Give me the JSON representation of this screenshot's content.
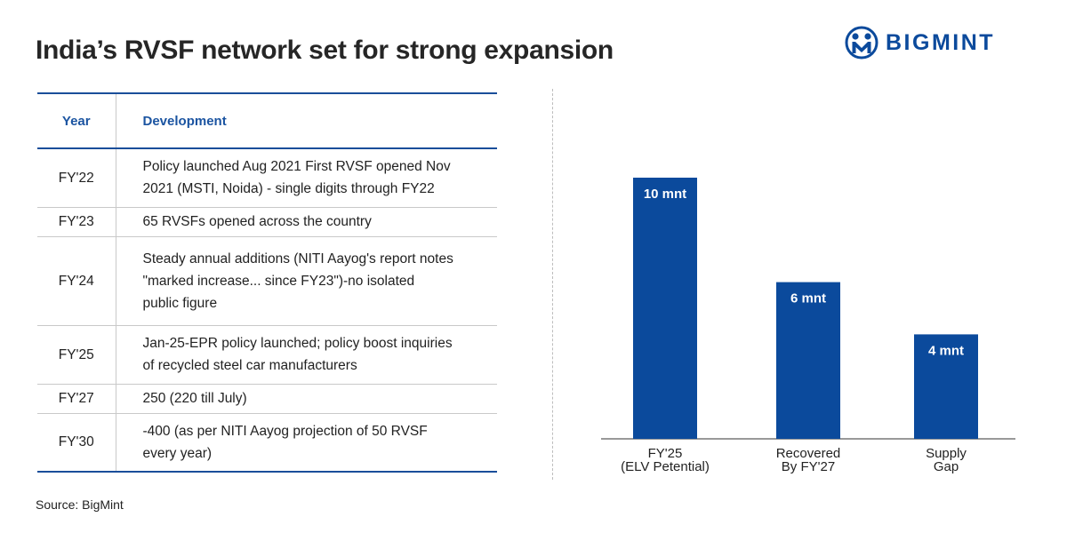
{
  "title": "India’s RVSF network set for strong expansion",
  "logo": {
    "text": "BIGMINT",
    "icon": "bigmint-logo-icon",
    "color": "#0b4a9c"
  },
  "table": {
    "headers": {
      "year": "Year",
      "development": "Development"
    },
    "rows": [
      {
        "year": "FY'22",
        "lines": [
          "Policy launched Aug 2021 First RVSF opened Nov",
          "2021 (MSTI, Noida) - single digits through FY22"
        ]
      },
      {
        "year": "FY'23",
        "lines": [
          "65 RVSFs opened across the country"
        ]
      },
      {
        "year": "FY'24",
        "lines": [
          "Steady annual additions (NITI Aayog's report notes",
          "\"marked increase... since FY23\")-no isolated",
          "public figure"
        ]
      },
      {
        "year": "FY'25",
        "lines": [
          "Jan-25-EPR policy launched; policy boost inquiries",
          "of recycled steel car manufacturers"
        ]
      },
      {
        "year": "FY'27",
        "lines": [
          "250 (220 till July)"
        ]
      },
      {
        "year": "FY'30",
        "lines": [
          "-400 (as per NITI Aayog projection of 50 RVSF",
          "every year)"
        ]
      }
    ]
  },
  "chart_data": {
    "type": "bar",
    "categories": [
      [
        "FY'25",
        "(ELV Petential)"
      ],
      [
        "Recovered",
        "By FY'27"
      ],
      [
        "Supply",
        "Gap"
      ]
    ],
    "values": [
      10,
      6,
      4
    ],
    "data_labels": [
      "10 mnt",
      "6 mnt",
      "4 mnt"
    ],
    "ylim": [
      0,
      10
    ],
    "grid": false,
    "bar_color": "#0b4a9c"
  },
  "source": "Source: BigMint"
}
